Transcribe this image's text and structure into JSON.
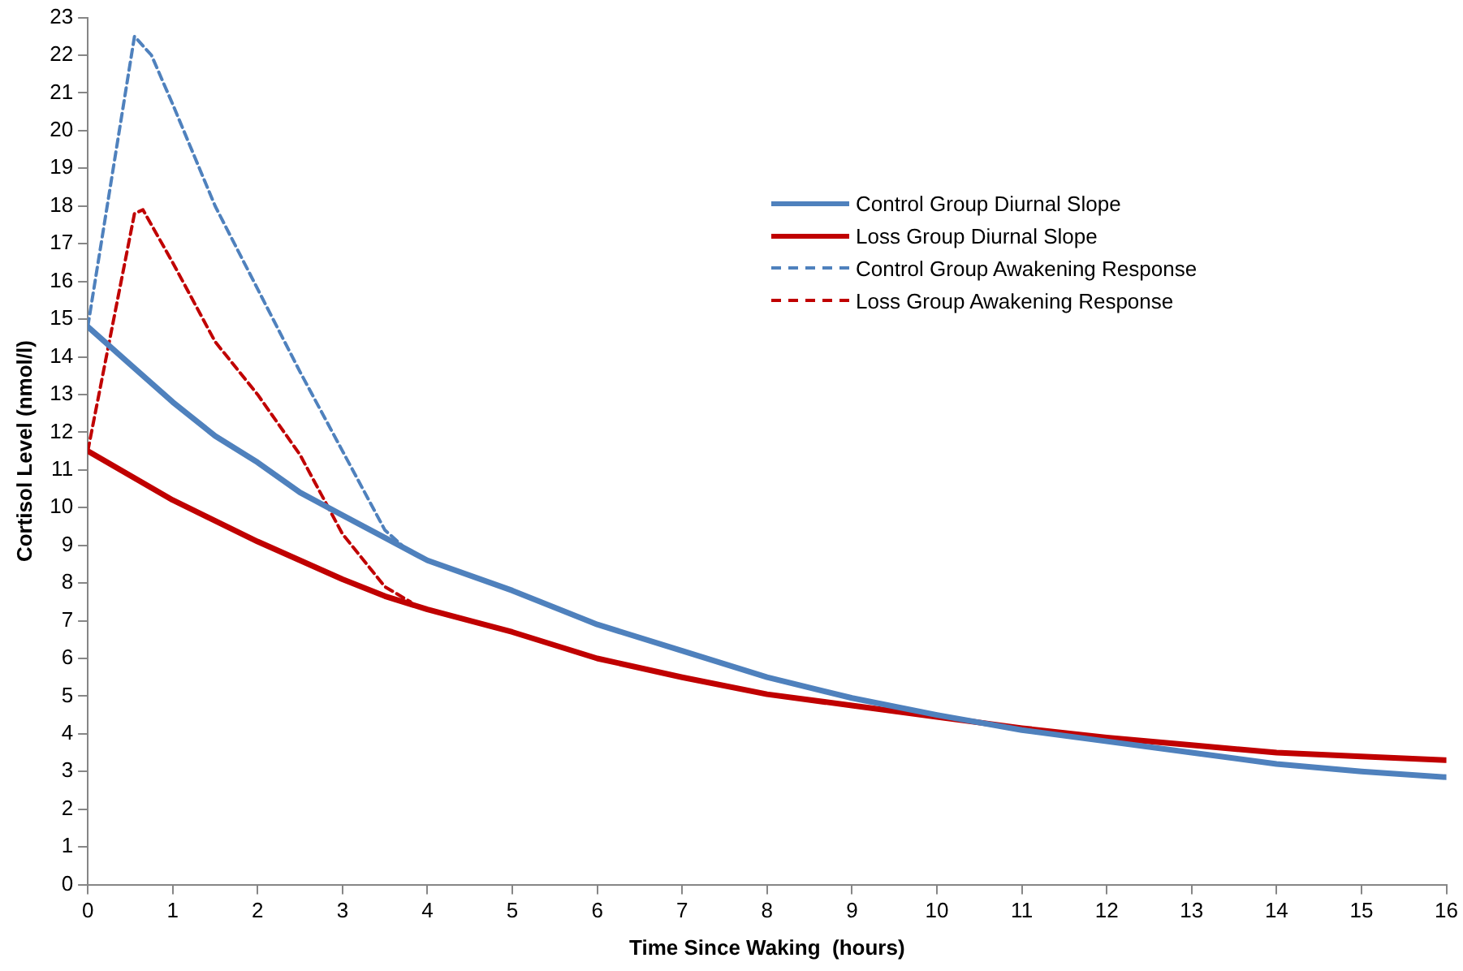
{
  "chart_data": {
    "type": "line",
    "xlabel": "Time Since Waking  (hours)",
    "ylabel": "Cortisol Level (nmol/l)",
    "xlim": [
      0,
      16
    ],
    "xticks": [
      0,
      1,
      2,
      3,
      4,
      5,
      6,
      7,
      8,
      9,
      10,
      11,
      12,
      13,
      14,
      15,
      16
    ],
    "ylim": [
      0,
      23
    ],
    "yticks": [
      0,
      1,
      2,
      3,
      4,
      5,
      6,
      7,
      8,
      9,
      10,
      11,
      12,
      13,
      14,
      15,
      16,
      17,
      18,
      19,
      20,
      21,
      22,
      23
    ],
    "grid": false,
    "legend": "top right",
    "marker": "none",
    "series": [
      {
        "name": "Control Group Diurnal Slope",
        "color": "#4f81bd",
        "line_style": "solid",
        "x": [
          0,
          0.5,
          1,
          1.5,
          2,
          2.5,
          3,
          3.5,
          4,
          5,
          6,
          7,
          8,
          9,
          10,
          11,
          12,
          13,
          14,
          15,
          16
        ],
        "values": [
          14.8,
          13.8,
          12.8,
          11.9,
          11.2,
          10.4,
          9.8,
          9.2,
          8.6,
          7.8,
          6.9,
          6.2,
          5.5,
          4.95,
          4.5,
          4.1,
          3.8,
          3.5,
          3.2,
          3.0,
          2.85
        ]
      },
      {
        "name": "Loss Group Diurnal Slope",
        "color": "#c00000",
        "line_style": "solid",
        "x": [
          0,
          1,
          2,
          3,
          3.5,
          4,
          5,
          6,
          7,
          8,
          9,
          10,
          11,
          12,
          13,
          14,
          15,
          16
        ],
        "values": [
          11.5,
          10.2,
          9.1,
          8.1,
          7.65,
          7.3,
          6.7,
          6.0,
          5.5,
          5.05,
          4.75,
          4.45,
          4.15,
          3.9,
          3.7,
          3.5,
          3.4,
          3.3
        ]
      },
      {
        "name": "Control Group Awakening Response",
        "color": "#4f81bd",
        "line_style": "dashed",
        "x": [
          0,
          0.55,
          0.75,
          1,
          1.5,
          2,
          2.5,
          3,
          3.5,
          3.7
        ],
        "values": [
          14.8,
          22.5,
          22.0,
          20.7,
          18.0,
          15.8,
          13.6,
          11.5,
          9.4,
          9.0
        ]
      },
      {
        "name": "Loss Group Awakening Response",
        "color": "#c00000",
        "line_style": "dashed",
        "x": [
          0,
          0.55,
          0.65,
          1,
          1.5,
          2,
          2.5,
          3,
          3.5,
          3.8
        ],
        "values": [
          11.5,
          17.8,
          17.9,
          16.5,
          14.4,
          13.0,
          11.4,
          9.3,
          7.9,
          7.5
        ]
      }
    ]
  }
}
